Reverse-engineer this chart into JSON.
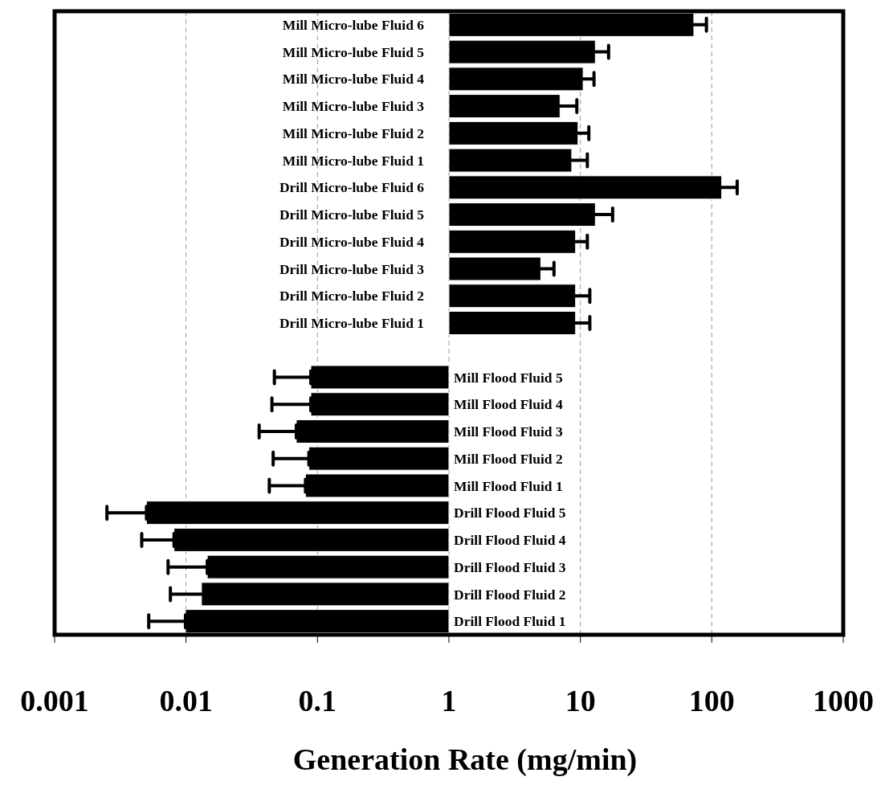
{
  "chart_data": {
    "type": "bar",
    "orientation": "horizontal",
    "log": "x",
    "grid": "x",
    "xlabel": "Generation Rate (mg/min)",
    "categories": [
      "Mill Micro-lube Fluid 6",
      "Mill Micro-lube Fluid 5",
      "Mill Micro-lube Fluid 4",
      "Mill Micro-lube Fluid 3",
      "Mill Micro-lube Fluid 2",
      "Mill Micro-lube Fluid 1",
      "Drill Micro-lube Fluid 6",
      "Drill Micro-lube Fluid 5",
      "Drill Micro-lube Fluid 4",
      "Drill Micro-lube Fluid 3",
      "Drill Micro-lube Fluid 2",
      "Drill Micro-lube Fluid 1",
      null,
      "Mill Flood Fluid 5",
      "Mill Flood Fluid 4",
      "Mill Flood Fluid 3",
      "Mill Flood Fluid 2",
      "Mill Flood Fluid 1",
      "Drill Flood Fluid 5",
      "Drill Flood Fluid 4",
      "Drill Flood Fluid 3",
      "Drill Flood Fluid 2",
      "Drill Flood Fluid 1"
    ],
    "base": [
      1,
      1,
      1,
      1,
      1,
      1,
      1,
      1,
      1,
      1,
      1,
      1,
      null,
      1,
      1,
      1,
      1,
      1,
      1,
      1,
      1,
      1,
      1
    ],
    "values": [
      72,
      12,
      9.5,
      6.0,
      8.6,
      7.6,
      118,
      12,
      8.2,
      4.0,
      8.2,
      8.2,
      null,
      -0.911,
      -0.911,
      -0.931,
      -0.914,
      -0.919,
      -0.995,
      -0.9919,
      -0.9855,
      -0.9869,
      -0.9901
    ],
    "errors": [
      [
        73,
        91
      ],
      [
        13,
        16.4
      ],
      [
        10.5,
        12.7
      ],
      [
        7.0,
        9.4
      ],
      [
        9.6,
        11.6
      ],
      [
        8.6,
        11.3
      ],
      [
        119,
        156
      ],
      [
        13,
        17.6
      ],
      [
        9.2,
        11.3
      ],
      [
        5.0,
        6.3
      ],
      [
        9.2,
        11.8
      ],
      [
        9.2,
        11.8
      ],
      null,
      [
        0.047,
        0.089
      ],
      [
        0.045,
        0.089
      ],
      [
        0.036,
        0.069
      ],
      [
        0.046,
        0.086
      ],
      [
        0.043,
        0.081
      ],
      [
        0.0025,
        0.005
      ],
      [
        0.0046,
        0.0081
      ],
      [
        0.0073,
        0.0145
      ],
      [
        0.0076,
        0.0131
      ],
      [
        0.0052,
        0.0099
      ]
    ],
    "color": "#000000",
    "xlim": [
      0.001,
      1000
    ],
    "xticks": [
      0.001,
      0.01,
      0.1,
      1,
      10,
      100,
      1000
    ]
  }
}
